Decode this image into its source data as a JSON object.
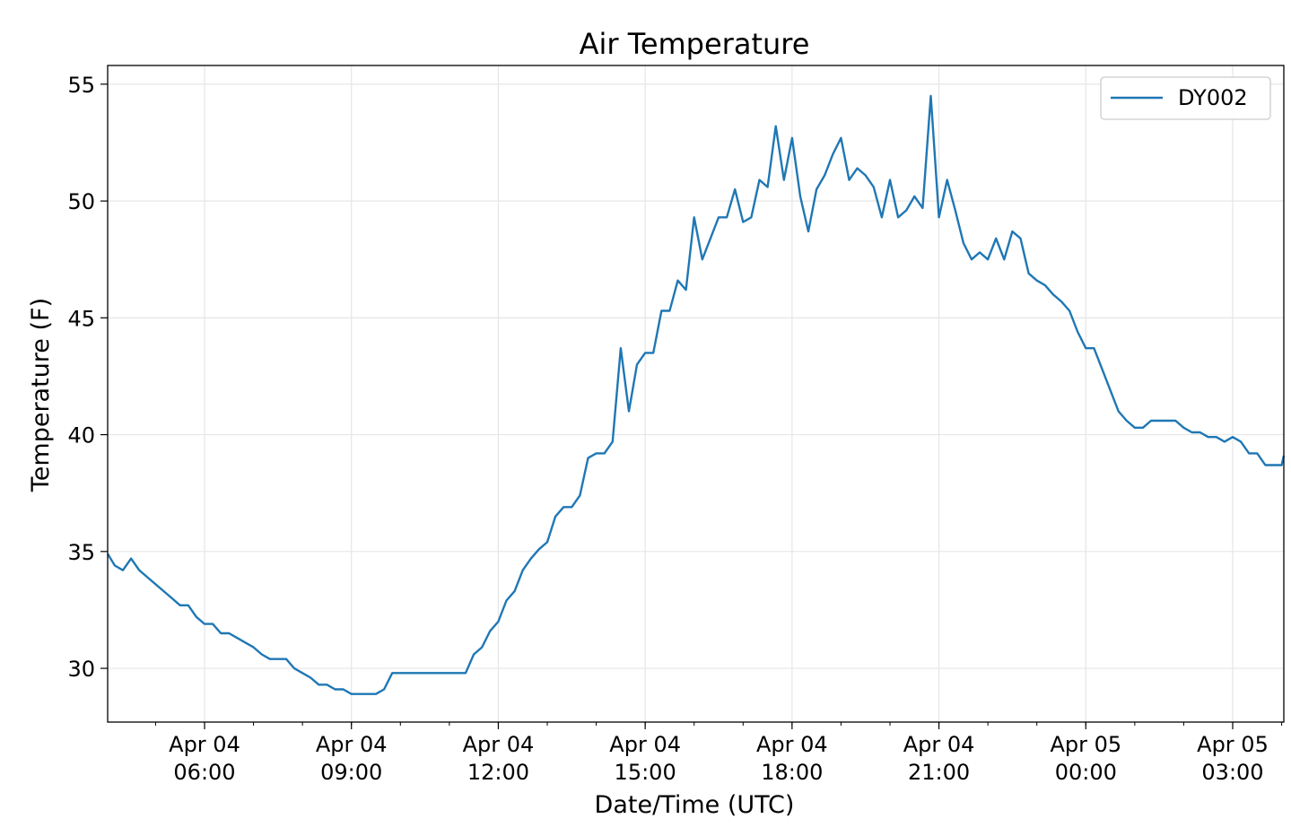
{
  "chart_data": {
    "type": "line",
    "title": "Air Temperature",
    "xlabel": "Date/Time (UTC)",
    "ylabel": "Temperature (F)",
    "x_start": "2019-04-04T04:00:00Z",
    "x_end": "2019-04-05T04:00:00Z",
    "ylim": [
      27.7,
      55.8
    ],
    "grid": true,
    "legend_position": "top-right",
    "y_ticks": [
      30,
      35,
      40,
      45,
      50,
      55
    ],
    "x_ticks": [
      {
        "t": "2019-04-04T06:00:00Z",
        "line1": "Apr 04",
        "line2": "06:00"
      },
      {
        "t": "2019-04-04T09:00:00Z",
        "line1": "Apr 04",
        "line2": "09:00"
      },
      {
        "t": "2019-04-04T12:00:00Z",
        "line1": "Apr 04",
        "line2": "12:00"
      },
      {
        "t": "2019-04-04T15:00:00Z",
        "line1": "Apr 04",
        "line2": "15:00"
      },
      {
        "t": "2019-04-04T18:00:00Z",
        "line1": "Apr 04",
        "line2": "18:00"
      },
      {
        "t": "2019-04-04T21:00:00Z",
        "line1": "Apr 04",
        "line2": "21:00"
      },
      {
        "t": "2019-04-05T00:00:00Z",
        "line1": "Apr 05",
        "line2": "00:00"
      },
      {
        "t": "2019-04-05T03:00:00Z",
        "line1": "Apr 05",
        "line2": "03:00"
      }
    ],
    "series": [
      {
        "name": "DY002",
        "color": "#1f77b4",
        "points": [
          [
            "2019-04-04T04:00:00Z",
            34.9
          ],
          [
            "2019-04-04T04:10:00Z",
            34.4
          ],
          [
            "2019-04-04T04:20:00Z",
            34.2
          ],
          [
            "2019-04-04T04:30:00Z",
            34.7
          ],
          [
            "2019-04-04T04:40:00Z",
            34.2
          ],
          [
            "2019-04-04T04:50:00Z",
            33.9
          ],
          [
            "2019-04-04T05:00:00Z",
            33.6
          ],
          [
            "2019-04-04T05:10:00Z",
            33.3
          ],
          [
            "2019-04-04T05:20:00Z",
            33.0
          ],
          [
            "2019-04-04T05:30:00Z",
            32.7
          ],
          [
            "2019-04-04T05:40:00Z",
            32.7
          ],
          [
            "2019-04-04T05:50:00Z",
            32.2
          ],
          [
            "2019-04-04T06:00:00Z",
            31.9
          ],
          [
            "2019-04-04T06:10:00Z",
            31.9
          ],
          [
            "2019-04-04T06:20:00Z",
            31.5
          ],
          [
            "2019-04-04T06:30:00Z",
            31.5
          ],
          [
            "2019-04-04T06:40:00Z",
            31.3
          ],
          [
            "2019-04-04T06:50:00Z",
            31.1
          ],
          [
            "2019-04-04T07:00:00Z",
            30.9
          ],
          [
            "2019-04-04T07:10:00Z",
            30.6
          ],
          [
            "2019-04-04T07:20:00Z",
            30.4
          ],
          [
            "2019-04-04T07:30:00Z",
            30.4
          ],
          [
            "2019-04-04T07:40:00Z",
            30.4
          ],
          [
            "2019-04-04T07:50:00Z",
            30.0
          ],
          [
            "2019-04-04T08:00:00Z",
            29.8
          ],
          [
            "2019-04-04T08:10:00Z",
            29.6
          ],
          [
            "2019-04-04T08:20:00Z",
            29.3
          ],
          [
            "2019-04-04T08:30:00Z",
            29.3
          ],
          [
            "2019-04-04T08:40:00Z",
            29.1
          ],
          [
            "2019-04-04T08:50:00Z",
            29.1
          ],
          [
            "2019-04-04T09:00:00Z",
            28.9
          ],
          [
            "2019-04-04T09:10:00Z",
            28.9
          ],
          [
            "2019-04-04T09:20:00Z",
            28.9
          ],
          [
            "2019-04-04T09:30:00Z",
            28.9
          ],
          [
            "2019-04-04T09:40:00Z",
            29.1
          ],
          [
            "2019-04-04T09:50:00Z",
            29.8
          ],
          [
            "2019-04-04T10:00:00Z",
            29.8
          ],
          [
            "2019-04-04T10:10:00Z",
            29.8
          ],
          [
            "2019-04-04T10:20:00Z",
            29.8
          ],
          [
            "2019-04-04T10:30:00Z",
            29.8
          ],
          [
            "2019-04-04T10:40:00Z",
            29.8
          ],
          [
            "2019-04-04T10:50:00Z",
            29.8
          ],
          [
            "2019-04-04T11:00:00Z",
            29.8
          ],
          [
            "2019-04-04T11:10:00Z",
            29.8
          ],
          [
            "2019-04-04T11:20:00Z",
            29.8
          ],
          [
            "2019-04-04T11:30:00Z",
            30.6
          ],
          [
            "2019-04-04T11:40:00Z",
            30.9
          ],
          [
            "2019-04-04T11:50:00Z",
            31.6
          ],
          [
            "2019-04-04T12:00:00Z",
            32.0
          ],
          [
            "2019-04-04T12:10:00Z",
            32.9
          ],
          [
            "2019-04-04T12:20:00Z",
            33.3
          ],
          [
            "2019-04-04T12:30:00Z",
            34.2
          ],
          [
            "2019-04-04T12:40:00Z",
            34.7
          ],
          [
            "2019-04-04T12:50:00Z",
            35.1
          ],
          [
            "2019-04-04T13:00:00Z",
            35.4
          ],
          [
            "2019-04-04T13:10:00Z",
            36.5
          ],
          [
            "2019-04-04T13:20:00Z",
            36.9
          ],
          [
            "2019-04-04T13:30:00Z",
            36.9
          ],
          [
            "2019-04-04T13:40:00Z",
            37.4
          ],
          [
            "2019-04-04T13:50:00Z",
            39.0
          ],
          [
            "2019-04-04T14:00:00Z",
            39.2
          ],
          [
            "2019-04-04T14:10:00Z",
            39.2
          ],
          [
            "2019-04-04T14:20:00Z",
            39.7
          ],
          [
            "2019-04-04T14:30:00Z",
            43.7
          ],
          [
            "2019-04-04T14:40:00Z",
            41.0
          ],
          [
            "2019-04-04T14:50:00Z",
            43.0
          ],
          [
            "2019-04-04T15:00:00Z",
            43.5
          ],
          [
            "2019-04-04T15:10:00Z",
            43.5
          ],
          [
            "2019-04-04T15:20:00Z",
            45.3
          ],
          [
            "2019-04-04T15:30:00Z",
            45.3
          ],
          [
            "2019-04-04T15:40:00Z",
            46.6
          ],
          [
            "2019-04-04T15:50:00Z",
            46.2
          ],
          [
            "2019-04-04T16:00:00Z",
            49.3
          ],
          [
            "2019-04-04T16:10:00Z",
            47.5
          ],
          [
            "2019-04-04T16:20:00Z",
            48.4
          ],
          [
            "2019-04-04T16:30:00Z",
            49.3
          ],
          [
            "2019-04-04T16:40:00Z",
            49.3
          ],
          [
            "2019-04-04T16:50:00Z",
            50.5
          ],
          [
            "2019-04-04T17:00:00Z",
            49.1
          ],
          [
            "2019-04-04T17:10:00Z",
            49.3
          ],
          [
            "2019-04-04T17:20:00Z",
            50.9
          ],
          [
            "2019-04-04T17:30:00Z",
            50.6
          ],
          [
            "2019-04-04T17:40:00Z",
            53.2
          ],
          [
            "2019-04-04T17:50:00Z",
            50.9
          ],
          [
            "2019-04-04T18:00:00Z",
            52.7
          ],
          [
            "2019-04-04T18:10:00Z",
            50.2
          ],
          [
            "2019-04-04T18:20:00Z",
            48.7
          ],
          [
            "2019-04-04T18:30:00Z",
            50.5
          ],
          [
            "2019-04-04T18:40:00Z",
            51.1
          ],
          [
            "2019-04-04T18:50:00Z",
            52.0
          ],
          [
            "2019-04-04T19:00:00Z",
            52.7
          ],
          [
            "2019-04-04T19:10:00Z",
            50.9
          ],
          [
            "2019-04-04T19:20:00Z",
            51.4
          ],
          [
            "2019-04-04T19:30:00Z",
            51.1
          ],
          [
            "2019-04-04T19:40:00Z",
            50.6
          ],
          [
            "2019-04-04T19:50:00Z",
            49.3
          ],
          [
            "2019-04-04T20:00:00Z",
            50.9
          ],
          [
            "2019-04-04T20:10:00Z",
            49.3
          ],
          [
            "2019-04-04T20:20:00Z",
            49.6
          ],
          [
            "2019-04-04T20:30:00Z",
            50.2
          ],
          [
            "2019-04-04T20:40:00Z",
            49.7
          ],
          [
            "2019-04-04T20:50:00Z",
            54.5
          ],
          [
            "2019-04-04T21:00:00Z",
            49.3
          ],
          [
            "2019-04-04T21:10:00Z",
            50.9
          ],
          [
            "2019-04-04T21:20:00Z",
            49.6
          ],
          [
            "2019-04-04T21:30:00Z",
            48.2
          ],
          [
            "2019-04-04T21:40:00Z",
            47.5
          ],
          [
            "2019-04-04T21:50:00Z",
            47.8
          ],
          [
            "2019-04-04T22:00:00Z",
            47.5
          ],
          [
            "2019-04-04T22:10:00Z",
            48.4
          ],
          [
            "2019-04-04T22:20:00Z",
            47.5
          ],
          [
            "2019-04-04T22:30:00Z",
            48.7
          ],
          [
            "2019-04-04T22:40:00Z",
            48.4
          ],
          [
            "2019-04-04T22:50:00Z",
            46.9
          ],
          [
            "2019-04-04T23:00:00Z",
            46.6
          ],
          [
            "2019-04-04T23:10:00Z",
            46.4
          ],
          [
            "2019-04-04T23:20:00Z",
            46.0
          ],
          [
            "2019-04-04T23:30:00Z",
            45.7
          ],
          [
            "2019-04-04T23:40:00Z",
            45.3
          ],
          [
            "2019-04-04T23:50:00Z",
            44.4
          ],
          [
            "2019-04-05T00:00:00Z",
            43.7
          ],
          [
            "2019-04-05T00:10:00Z",
            43.7
          ],
          [
            "2019-04-05T00:20:00Z",
            42.8
          ],
          [
            "2019-04-05T00:30:00Z",
            41.9
          ],
          [
            "2019-04-05T00:40:00Z",
            41.0
          ],
          [
            "2019-04-05T00:50:00Z",
            40.6
          ],
          [
            "2019-04-05T01:00:00Z",
            40.3
          ],
          [
            "2019-04-05T01:10:00Z",
            40.3
          ],
          [
            "2019-04-05T01:20:00Z",
            40.6
          ],
          [
            "2019-04-05T01:30:00Z",
            40.6
          ],
          [
            "2019-04-05T01:40:00Z",
            40.6
          ],
          [
            "2019-04-05T01:50:00Z",
            40.6
          ],
          [
            "2019-04-05T02:00:00Z",
            40.3
          ],
          [
            "2019-04-05T02:10:00Z",
            40.1
          ],
          [
            "2019-04-05T02:20:00Z",
            40.1
          ],
          [
            "2019-04-05T02:30:00Z",
            39.9
          ],
          [
            "2019-04-05T02:40:00Z",
            39.9
          ],
          [
            "2019-04-05T02:50:00Z",
            39.7
          ],
          [
            "2019-04-05T03:00:00Z",
            39.9
          ],
          [
            "2019-04-05T03:10:00Z",
            39.7
          ],
          [
            "2019-04-05T03:20:00Z",
            39.2
          ],
          [
            "2019-04-05T03:30:00Z",
            39.2
          ],
          [
            "2019-04-05T03:40:00Z",
            38.7
          ],
          [
            "2019-04-05T03:50:00Z",
            38.7
          ],
          [
            "2019-04-05T04:00:00Z",
            38.7
          ],
          [
            "2019-04-05T04:10:00Z",
            39.1
          ]
        ]
      }
    ]
  }
}
